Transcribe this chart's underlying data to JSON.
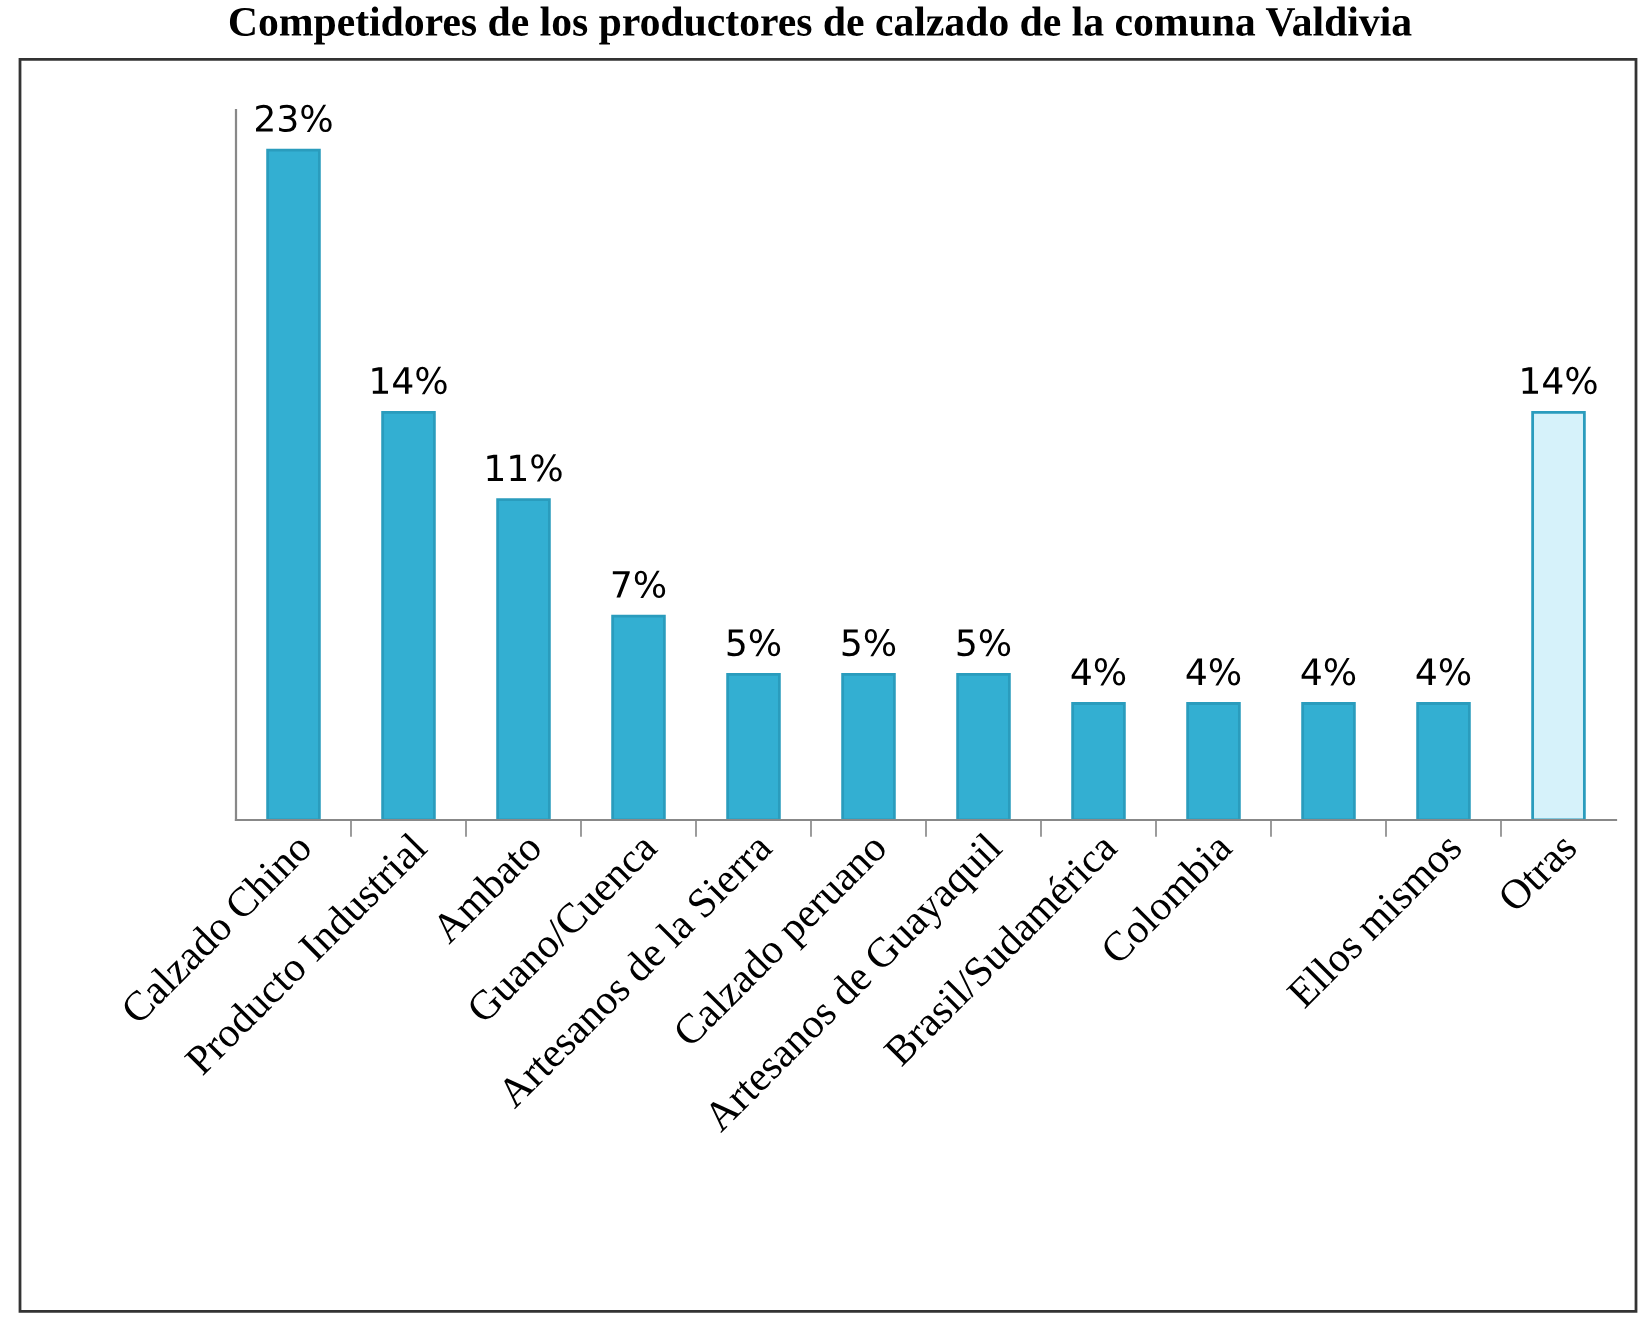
{
  "chart_data": {
    "type": "bar",
    "title": "Competidores de los productores de calzado de la comuna Valdivia",
    "categories": [
      "Calzado Chino",
      "Producto Industrial",
      "Ambato",
      "Guano/Cuenca",
      "Artesanos de la Sierra",
      "Calzado peruano",
      "Artesanos de Guayaquil",
      "Brasil/Sudamérica",
      "Colombia",
      null,
      "Ellos mismos",
      "Otras"
    ],
    "values": [
      23,
      14,
      11,
      7,
      5,
      5,
      5,
      4,
      4,
      4,
      4,
      14
    ],
    "value_labels": [
      "23%",
      "14%",
      "11%",
      "7%",
      "5%",
      "5%",
      "5%",
      "4%",
      "4%",
      "4%",
      "4%",
      "14%"
    ],
    "colors": [
      "#33afd2",
      "#33afd2",
      "#33afd2",
      "#33afd2",
      "#33afd2",
      "#33afd2",
      "#33afd2",
      "#33afd2",
      "#33afd2",
      "#33afd2",
      "#33afd2",
      "#d6f2fa"
    ],
    "tick_labels": "x",
    "grid": false,
    "legend": false
  }
}
